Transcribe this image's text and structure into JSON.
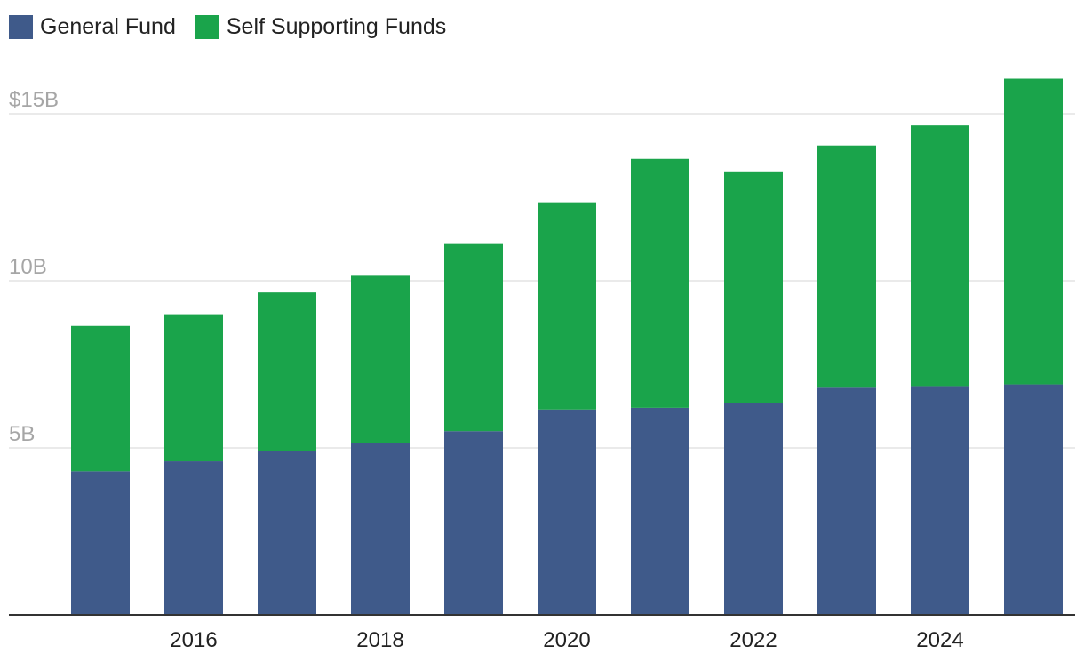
{
  "chart_data": {
    "type": "bar",
    "stacked": true,
    "categories": [
      2015,
      2016,
      2017,
      2018,
      2019,
      2020,
      2021,
      2022,
      2023,
      2024,
      2025
    ],
    "series": [
      {
        "name": "General Fund",
        "color": "#3f5a8a",
        "values": [
          4.3,
          4.6,
          4.9,
          5.15,
          5.5,
          6.15,
          6.2,
          6.35,
          6.8,
          6.85,
          6.9
        ]
      },
      {
        "name": "Self Supporting Funds",
        "color": "#1aa44b",
        "values": [
          4.35,
          4.4,
          4.75,
          5.0,
          5.6,
          6.2,
          7.45,
          6.9,
          7.25,
          7.8,
          9.15
        ]
      }
    ],
    "yticks": [
      {
        "value": 5,
        "label": "5B"
      },
      {
        "value": 10,
        "label": "10B"
      },
      {
        "value": 15,
        "label": "$15B"
      }
    ],
    "xticks": [
      2016,
      2018,
      2020,
      2022,
      2024
    ],
    "ylim": [
      0,
      15
    ],
    "grid": true,
    "legend_position": "top-left"
  }
}
